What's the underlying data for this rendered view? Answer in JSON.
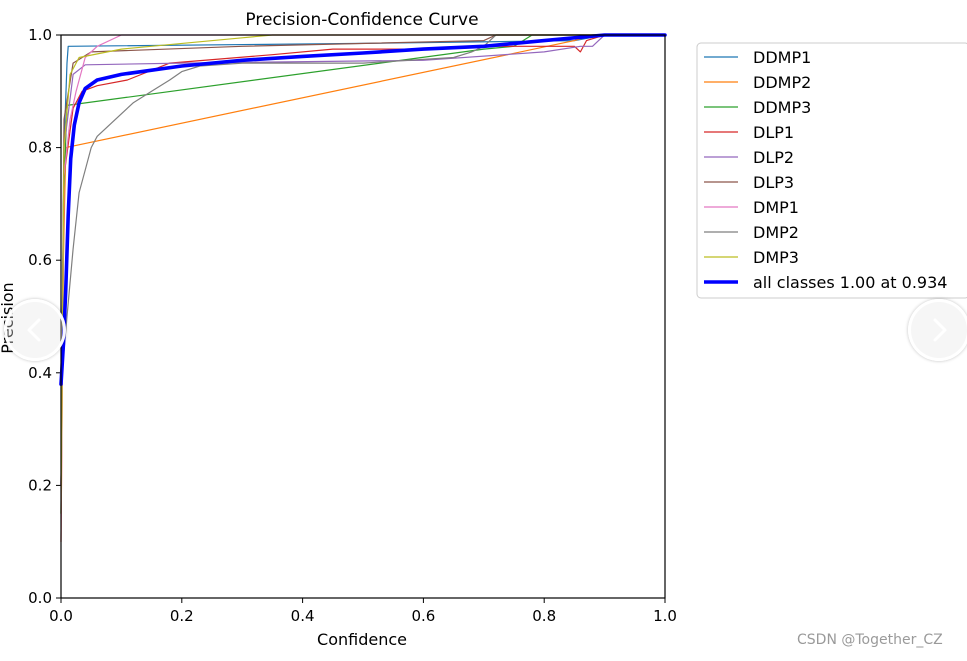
{
  "watermark": "CSDN @Together_CZ",
  "nav": {
    "prev_icon": "chevron-left-icon",
    "next_icon": "chevron-right-icon"
  },
  "chart_data": {
    "type": "line",
    "title": "Precision-Confidence Curve",
    "xlabel": "Confidence",
    "ylabel": "Precision",
    "xlim": [
      0,
      1
    ],
    "ylim": [
      0,
      1
    ],
    "xticks": [
      "0.0",
      "0.2",
      "0.4",
      "0.6",
      "0.8",
      "1.0"
    ],
    "yticks": [
      "0.0",
      "0.2",
      "0.4",
      "0.6",
      "0.8",
      "1.0"
    ],
    "grid": false,
    "legend_position": "outside-right",
    "series": [
      {
        "name": "DDMP1",
        "color": "#1f77b4",
        "width": 1.2,
        "points": [
          [
            0,
            0.2
          ],
          [
            0.005,
            0.8
          ],
          [
            0.01,
            0.95
          ],
          [
            0.012,
            0.98
          ],
          [
            0.5,
            0.985
          ],
          [
            0.85,
            0.99
          ],
          [
            0.9,
            1.0
          ],
          [
            1.0,
            1.0
          ]
        ]
      },
      {
        "name": "DDMP2",
        "color": "#ff7f0e",
        "width": 1.2,
        "points": [
          [
            0,
            0.1
          ],
          [
            0.004,
            0.6
          ],
          [
            0.008,
            0.8
          ],
          [
            0.85,
            0.99
          ],
          [
            0.88,
            1.0
          ],
          [
            1.0,
            1.0
          ]
        ]
      },
      {
        "name": "DDMP3",
        "color": "#2ca02c",
        "width": 1.2,
        "points": [
          [
            0,
            0.15
          ],
          [
            0.004,
            0.7
          ],
          [
            0.01,
            0.875
          ],
          [
            0.7,
            0.975
          ],
          [
            0.75,
            0.98
          ],
          [
            0.78,
            1.0
          ],
          [
            1.0,
            1.0
          ]
        ]
      },
      {
        "name": "DLP1",
        "color": "#d62728",
        "width": 1.2,
        "points": [
          [
            0,
            0.2
          ],
          [
            0.005,
            0.75
          ],
          [
            0.02,
            0.87
          ],
          [
            0.035,
            0.9
          ],
          [
            0.06,
            0.91
          ],
          [
            0.11,
            0.92
          ],
          [
            0.18,
            0.95
          ],
          [
            0.35,
            0.965
          ],
          [
            0.45,
            0.975
          ],
          [
            0.6,
            0.975
          ],
          [
            0.7,
            0.98
          ],
          [
            0.85,
            0.98
          ],
          [
            0.86,
            0.97
          ],
          [
            0.87,
            0.99
          ],
          [
            0.9,
            1.0
          ],
          [
            1.0,
            1.0
          ]
        ]
      },
      {
        "name": "DLP2",
        "color": "#9467bd",
        "width": 1.2,
        "points": [
          [
            0,
            0.2
          ],
          [
            0.005,
            0.8
          ],
          [
            0.02,
            0.93
          ],
          [
            0.04,
            0.947
          ],
          [
            0.2,
            0.95
          ],
          [
            0.6,
            0.955
          ],
          [
            0.8,
            0.97
          ],
          [
            0.86,
            0.98
          ],
          [
            0.88,
            0.98
          ],
          [
            0.89,
            0.99
          ],
          [
            0.9,
            1.0
          ],
          [
            1.0,
            1.0
          ]
        ]
      },
      {
        "name": "DLP3",
        "color": "#8c564b",
        "width": 1.2,
        "points": [
          [
            0,
            0.2
          ],
          [
            0.005,
            0.85
          ],
          [
            0.02,
            0.95
          ],
          [
            0.05,
            0.97
          ],
          [
            0.3,
            0.98
          ],
          [
            0.7,
            0.99
          ],
          [
            0.72,
            1.0
          ],
          [
            1.0,
            1.0
          ]
        ]
      },
      {
        "name": "DMP1",
        "color": "#e377c2",
        "width": 1.2,
        "points": [
          [
            0,
            0.1
          ],
          [
            0.005,
            0.75
          ],
          [
            0.015,
            0.85
          ],
          [
            0.025,
            0.9
          ],
          [
            0.04,
            0.96
          ],
          [
            0.06,
            0.98
          ],
          [
            0.1,
            1.0
          ],
          [
            1.0,
            1.0
          ]
        ]
      },
      {
        "name": "DMP2",
        "color": "#7f7f7f",
        "width": 1.2,
        "points": [
          [
            0,
            0.38
          ],
          [
            0.01,
            0.5
          ],
          [
            0.02,
            0.62
          ],
          [
            0.03,
            0.72
          ],
          [
            0.04,
            0.76
          ],
          [
            0.05,
            0.8
          ],
          [
            0.06,
            0.82
          ],
          [
            0.08,
            0.84
          ],
          [
            0.1,
            0.86
          ],
          [
            0.12,
            0.88
          ],
          [
            0.15,
            0.9
          ],
          [
            0.18,
            0.92
          ],
          [
            0.2,
            0.935
          ],
          [
            0.23,
            0.945
          ],
          [
            0.3,
            0.95
          ],
          [
            0.5,
            0.95
          ],
          [
            0.65,
            0.96
          ],
          [
            0.68,
            0.97
          ],
          [
            0.7,
            0.98
          ],
          [
            0.72,
            1.0
          ],
          [
            1.0,
            1.0
          ]
        ]
      },
      {
        "name": "DMP3",
        "color": "#bcbd22",
        "width": 1.2,
        "points": [
          [
            0,
            0.15
          ],
          [
            0.005,
            0.8
          ],
          [
            0.015,
            0.93
          ],
          [
            0.03,
            0.96
          ],
          [
            0.1,
            0.975
          ],
          [
            0.3,
            0.995
          ],
          [
            0.35,
            1.0
          ],
          [
            1.0,
            1.0
          ]
        ]
      },
      {
        "name": "all classes 1.00 at 0.934",
        "color": "#0000ff",
        "width": 3.6,
        "points": [
          [
            0,
            0.38
          ],
          [
            0.004,
            0.45
          ],
          [
            0.008,
            0.55
          ],
          [
            0.012,
            0.68
          ],
          [
            0.016,
            0.78
          ],
          [
            0.022,
            0.84
          ],
          [
            0.03,
            0.88
          ],
          [
            0.04,
            0.905
          ],
          [
            0.06,
            0.92
          ],
          [
            0.1,
            0.93
          ],
          [
            0.2,
            0.945
          ],
          [
            0.3,
            0.955
          ],
          [
            0.4,
            0.962
          ],
          [
            0.5,
            0.968
          ],
          [
            0.6,
            0.975
          ],
          [
            0.7,
            0.98
          ],
          [
            0.75,
            0.985
          ],
          [
            0.8,
            0.99
          ],
          [
            0.85,
            0.995
          ],
          [
            0.9,
            1.0
          ],
          [
            1.0,
            1.0
          ]
        ]
      }
    ]
  }
}
